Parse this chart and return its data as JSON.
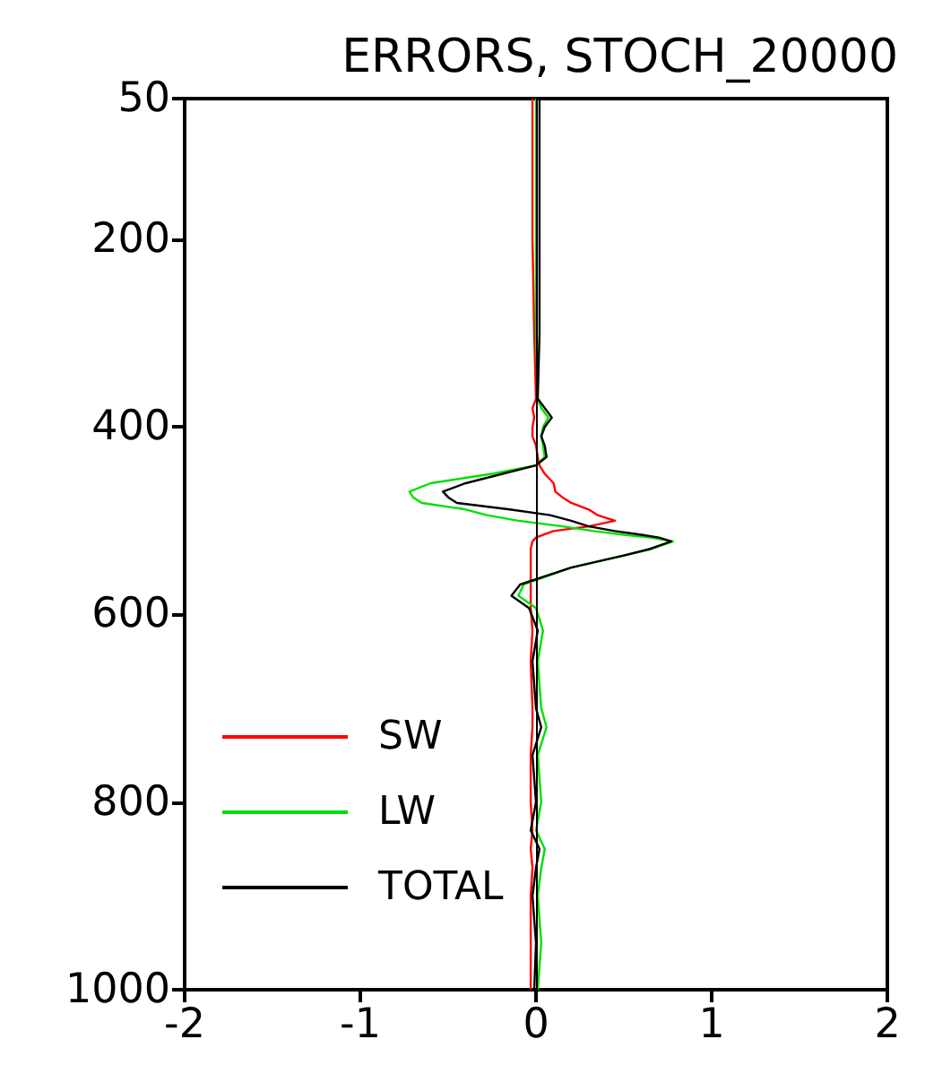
{
  "chart_data": {
    "type": "line",
    "title": "ERRORS, STOCH_20000",
    "orientation": "horizontal",
    "x": [
      50,
      100,
      200,
      300,
      370,
      380,
      390,
      400,
      410,
      420,
      432,
      441,
      450,
      460,
      469,
      475,
      481,
      488,
      494,
      500,
      506,
      511,
      515,
      518,
      522,
      530,
      537,
      550,
      568,
      580,
      593,
      617,
      650,
      700,
      720,
      750,
      800,
      830,
      850,
      870,
      900,
      950,
      1000
    ],
    "series": [
      {
        "name": "SW",
        "color": "#ff0000",
        "values": [
          -0.02,
          -0.02,
          -0.02,
          -0.01,
          0.0,
          -0.02,
          -0.01,
          -0.02,
          -0.02,
          0.0,
          0.01,
          0.02,
          0.05,
          0.1,
          0.11,
          0.15,
          0.2,
          0.3,
          0.35,
          0.45,
          0.3,
          0.1,
          0.04,
          0.0,
          -0.02,
          -0.03,
          -0.03,
          -0.03,
          -0.03,
          -0.03,
          -0.03,
          -0.02,
          -0.03,
          -0.02,
          -0.02,
          -0.03,
          -0.03,
          -0.02,
          -0.03,
          -0.02,
          -0.03,
          -0.03,
          -0.03
        ]
      },
      {
        "name": "LW",
        "color": "#00e000",
        "values": [
          0.0,
          0.0,
          0.0,
          0.0,
          0.01,
          0.03,
          0.07,
          0.04,
          0.03,
          0.04,
          0.05,
          0.0,
          -0.25,
          -0.6,
          -0.72,
          -0.7,
          -0.65,
          -0.4,
          -0.28,
          -0.1,
          0.15,
          0.33,
          0.5,
          0.65,
          0.78,
          0.66,
          0.5,
          0.2,
          -0.07,
          -0.1,
          0.0,
          0.04,
          0.01,
          0.03,
          0.06,
          0.01,
          0.03,
          0.0,
          0.05,
          0.03,
          0.01,
          0.03,
          0.01
        ]
      },
      {
        "name": "TOTAL",
        "color": "#000000",
        "values": [
          0.02,
          0.02,
          0.02,
          0.02,
          0.01,
          0.05,
          0.09,
          0.05,
          0.03,
          0.05,
          0.06,
          0.0,
          -0.19,
          -0.4,
          -0.53,
          -0.5,
          -0.45,
          -0.15,
          0.08,
          0.2,
          0.3,
          0.45,
          0.6,
          0.7,
          0.77,
          0.65,
          0.5,
          0.2,
          -0.09,
          -0.14,
          -0.04,
          0.01,
          -0.02,
          0.0,
          0.03,
          -0.02,
          0.0,
          -0.03,
          0.02,
          0.0,
          -0.02,
          0.0,
          -0.01
        ]
      }
    ],
    "xlim": [
      -2,
      2
    ],
    "xticks": [
      -2,
      -1,
      0,
      1,
      2
    ],
    "ylim": [
      1000,
      50
    ],
    "yticks": [
      50,
      200,
      400,
      600,
      800,
      1000
    ],
    "ref_lines": [
      {
        "axis": "x",
        "value": 0,
        "color": "#000000"
      }
    ],
    "grid": false,
    "legend": "bottom left",
    "marker": "none",
    "line_style": "solid"
  }
}
